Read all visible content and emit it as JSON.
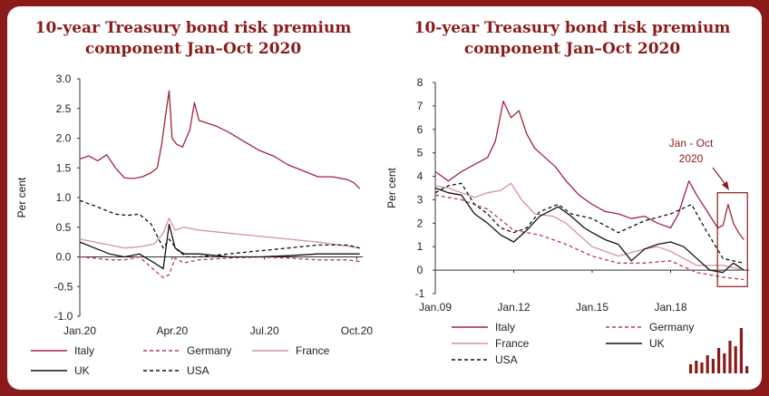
{
  "colors": {
    "Italy": "#a3243a",
    "Germany": "#c0394b",
    "France": "#d9909a",
    "UK": "#111111",
    "USA": "#111111",
    "brand": "#8b1a1a"
  },
  "logo": {
    "name": "bar-logo-icon"
  },
  "chart_data": [
    {
      "type": "line",
      "title": "10-year Treasury bond risk premium component Jan–Oct 2020",
      "ylabel": "Per cent",
      "ylim": [
        -1.0,
        3.0
      ],
      "yticks": [
        "3.0",
        "2.5",
        "2.0",
        "1.5",
        "1.0",
        "0.5",
        "0.0",
        "-0.5",
        "-1.0"
      ],
      "xticks": [
        "Jan.20",
        "Apr.20",
        "Jul.20",
        "Oct.20"
      ],
      "xlim": [
        0,
        9.5
      ],
      "grid": false,
      "legend_position": "bottom",
      "series": [
        {
          "name": "Italy",
          "style": "solid",
          "x": [
            0,
            0.3,
            0.6,
            0.9,
            1.2,
            1.5,
            1.8,
            2.1,
            2.4,
            2.6,
            2.75,
            2.9,
            3.0,
            3.1,
            3.25,
            3.45,
            3.7,
            3.85,
            4.0,
            4.3,
            4.6,
            5.0,
            5.5,
            6.0,
            6.5,
            7.0,
            7.5,
            8.0,
            8.5,
            9.0,
            9.2,
            9.4
          ],
          "y": [
            1.65,
            1.7,
            1.62,
            1.72,
            1.5,
            1.33,
            1.32,
            1.35,
            1.42,
            1.5,
            1.9,
            2.45,
            2.8,
            2.0,
            1.9,
            1.85,
            2.15,
            2.6,
            2.3,
            2.25,
            2.2,
            2.1,
            1.95,
            1.8,
            1.7,
            1.55,
            1.45,
            1.35,
            1.35,
            1.3,
            1.25,
            1.15
          ]
        },
        {
          "name": "Germany",
          "style": "dashed",
          "x": [
            0,
            0.5,
            1.0,
            1.5,
            2.0,
            2.5,
            2.8,
            3.0,
            3.2,
            3.5,
            4.0,
            5.0,
            6.0,
            7.0,
            8.0,
            9.0,
            9.4
          ],
          "y": [
            0.0,
            -0.02,
            -0.05,
            -0.05,
            0.0,
            -0.22,
            -0.35,
            -0.3,
            -0.02,
            -0.1,
            -0.05,
            -0.02,
            0.0,
            -0.02,
            -0.05,
            -0.05,
            -0.08
          ]
        },
        {
          "name": "France",
          "style": "solid",
          "x": [
            0,
            0.5,
            1.0,
            1.5,
            2.0,
            2.5,
            2.8,
            3.0,
            3.2,
            3.5,
            4.0,
            5.0,
            6.0,
            7.0,
            8.0,
            9.0,
            9.4
          ],
          "y": [
            0.3,
            0.25,
            0.2,
            0.15,
            0.17,
            0.22,
            0.4,
            0.65,
            0.45,
            0.5,
            0.45,
            0.4,
            0.35,
            0.3,
            0.25,
            0.18,
            0.15
          ]
        },
        {
          "name": "UK",
          "style": "solid",
          "x": [
            0,
            0.5,
            1.0,
            1.5,
            2.0,
            2.5,
            2.8,
            3.0,
            3.2,
            3.5,
            4.0,
            5.0,
            6.0,
            7.0,
            8.0,
            9.0,
            9.4
          ],
          "y": [
            0.25,
            0.15,
            0.05,
            0.0,
            0.05,
            -0.1,
            -0.2,
            0.55,
            0.15,
            0.05,
            0.05,
            0.0,
            0.0,
            0.02,
            0.05,
            0.05,
            0.05
          ]
        },
        {
          "name": "USA",
          "style": "dashed",
          "x": [
            0,
            0.4,
            0.8,
            1.2,
            1.6,
            2.0,
            2.4,
            2.8,
            3.0,
            3.3,
            3.6,
            4.0,
            5.0,
            6.0,
            7.0,
            8.0,
            9.0,
            9.4
          ],
          "y": [
            0.95,
            0.88,
            0.8,
            0.72,
            0.7,
            0.72,
            0.55,
            0.15,
            0.3,
            0.1,
            0.0,
            0.0,
            0.05,
            0.1,
            0.15,
            0.2,
            0.2,
            0.15
          ]
        }
      ]
    },
    {
      "type": "line",
      "title": "10-year Treasury bond risk premium component Jan–Oct 2020",
      "ylabel": "Per cent",
      "ylim": [
        -1,
        8
      ],
      "yticks": [
        "8",
        "7",
        "6",
        "5",
        "4",
        "3",
        "2",
        "1",
        "0",
        "-1"
      ],
      "xticks": [
        "Jan.09",
        "Jan.12",
        "Jan.15",
        "Jan.18"
      ],
      "xlim": [
        2009,
        2021
      ],
      "grid": false,
      "legend_position": "bottom",
      "annotation": "Jan - Oct 2020",
      "highlight_range": [
        2020.0,
        2020.8
      ],
      "series": [
        {
          "name": "Italy",
          "style": "solid",
          "x": [
            2009,
            2009.5,
            2010,
            2010.5,
            2011,
            2011.3,
            2011.6,
            2011.9,
            2012.2,
            2012.5,
            2012.8,
            2013.2,
            2013.6,
            2014,
            2014.5,
            2015,
            2015.5,
            2016,
            2016.5,
            2017,
            2017.5,
            2018,
            2018.3,
            2018.7,
            2019,
            2019.4,
            2019.8,
            2020.0,
            2020.2,
            2020.4,
            2020.6,
            2020.8
          ],
          "y": [
            4.2,
            3.8,
            4.2,
            4.5,
            4.8,
            5.5,
            7.2,
            6.5,
            6.8,
            5.8,
            5.2,
            4.8,
            4.4,
            3.8,
            3.2,
            2.8,
            2.5,
            2.4,
            2.2,
            2.3,
            2.0,
            1.8,
            2.4,
            3.8,
            3.2,
            2.5,
            1.8,
            1.9,
            2.8,
            2.0,
            1.6,
            1.3
          ]
        },
        {
          "name": "Germany",
          "style": "dashed",
          "x": [
            2009,
            2010,
            2011,
            2012,
            2013,
            2014,
            2015,
            2016,
            2017,
            2018,
            2019,
            2020,
            2020.8
          ],
          "y": [
            3.2,
            3.0,
            2.6,
            1.7,
            1.5,
            1.1,
            0.6,
            0.3,
            0.3,
            0.4,
            -0.1,
            -0.3,
            -0.4
          ]
        },
        {
          "name": "France",
          "style": "solid",
          "x": [
            2009,
            2009.5,
            2010,
            2010.5,
            2011,
            2011.5,
            2011.9,
            2012.3,
            2012.8,
            2013.5,
            2014,
            2014.5,
            2015,
            2016,
            2017,
            2017.5,
            2018,
            2019,
            2020,
            2020.8
          ],
          "y": [
            3.6,
            3.5,
            3.3,
            3.1,
            3.3,
            3.4,
            3.7,
            3.0,
            2.4,
            2.3,
            2.0,
            1.5,
            1.0,
            0.6,
            0.9,
            1.0,
            0.8,
            0.2,
            0.2,
            0.0
          ]
        },
        {
          "name": "UK",
          "style": "solid",
          "x": [
            2009,
            2009.5,
            2010,
            2010.5,
            2011,
            2011.5,
            2012,
            2012.5,
            2013,
            2013.7,
            2014.2,
            2014.7,
            2015,
            2015.5,
            2016,
            2016.5,
            2017,
            2017.5,
            2018,
            2018.5,
            2019,
            2019.5,
            2020,
            2020.4,
            2020.8
          ],
          "y": [
            3.5,
            3.3,
            3.2,
            2.4,
            2.0,
            1.5,
            1.2,
            1.7,
            2.3,
            2.7,
            2.3,
            1.8,
            1.6,
            1.3,
            1.1,
            0.4,
            0.9,
            1.1,
            1.2,
            1.0,
            0.5,
            0.0,
            -0.1,
            0.3,
            0.0
          ]
        },
        {
          "name": "USA",
          "style": "dashed",
          "x": [
            2009,
            2009.5,
            2010,
            2010.5,
            2011,
            2011.5,
            2012,
            2012.5,
            2013,
            2013.7,
            2014.2,
            2015,
            2016,
            2017,
            2018,
            2018.8,
            2019.3,
            2020,
            2020.4,
            2020.8
          ],
          "y": [
            3.3,
            3.6,
            3.7,
            2.8,
            2.4,
            1.8,
            1.6,
            1.8,
            2.5,
            2.8,
            2.4,
            2.2,
            1.6,
            2.1,
            2.4,
            2.8,
            1.8,
            0.5,
            0.4,
            0.3
          ]
        }
      ]
    }
  ]
}
